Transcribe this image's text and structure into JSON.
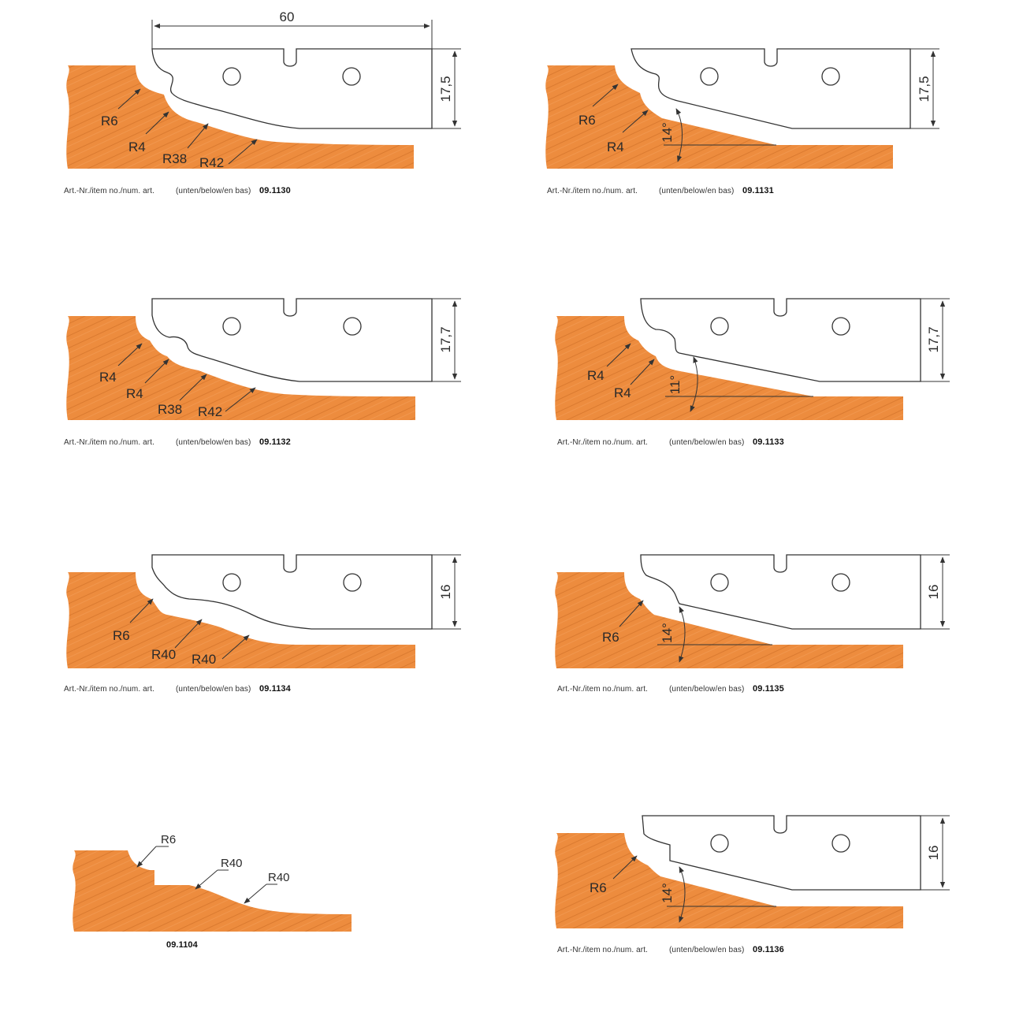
{
  "captions": {
    "label": "Art.-Nr./item no./num. art.",
    "position": "(unten/below/en bas)"
  },
  "overall_width_label": "60",
  "profiles": [
    {
      "id": "p1",
      "article": "09.1130",
      "height": "17,5",
      "radii": [
        "R6",
        "R4",
        "R38",
        "R42"
      ]
    },
    {
      "id": "p2",
      "article": "09.1131",
      "height": "17,5",
      "radii": [
        "R6",
        "R4"
      ],
      "angle": "14°"
    },
    {
      "id": "p3",
      "article": "09.1132",
      "height": "17,7",
      "radii": [
        "R4",
        "R4",
        "R38",
        "R42"
      ]
    },
    {
      "id": "p4",
      "article": "09.1133",
      "height": "17,7",
      "radii": [
        "R4",
        "R4"
      ],
      "angle": "11°"
    },
    {
      "id": "p5",
      "article": "09.1134",
      "height": "16",
      "radii": [
        "R6",
        "R40",
        "R40"
      ]
    },
    {
      "id": "p6",
      "article": "09.1135",
      "height": "16",
      "radii": [
        "R6"
      ],
      "angle": "14°"
    },
    {
      "id": "p7",
      "article": "09.1104",
      "radii": [
        "R6",
        "R40",
        "R40"
      ]
    },
    {
      "id": "p8",
      "article": "09.1136",
      "height": "16",
      "radii": [
        "R6"
      ],
      "angle": "14°"
    }
  ],
  "colors": {
    "wood": "#ED8C3E",
    "wood_grain": "#D9752B",
    "knife": "#ffffff",
    "line": "#333333"
  }
}
